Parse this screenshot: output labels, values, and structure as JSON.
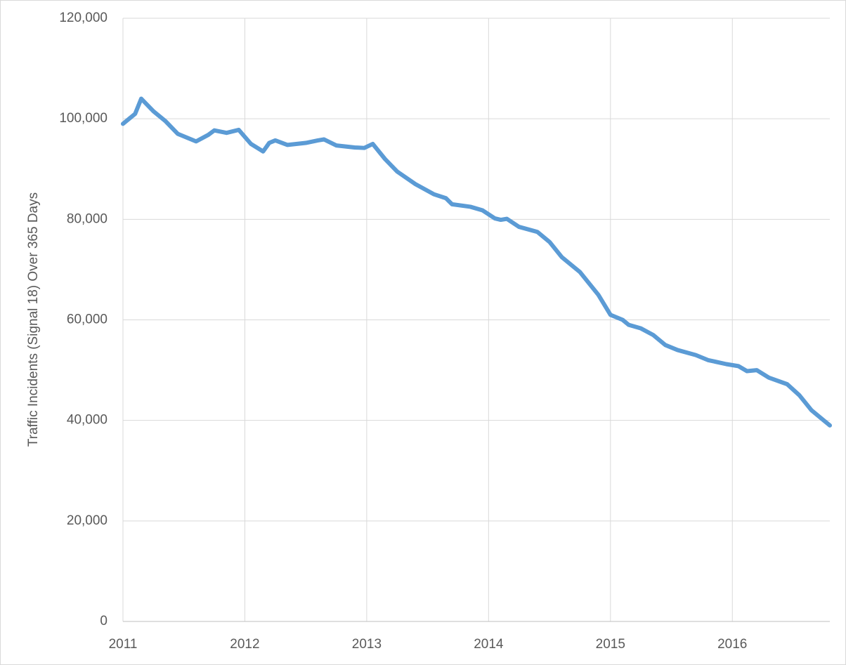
{
  "chart_data": {
    "type": "line",
    "y_label": "Traffic Incidents (Signal 18) Over 365 Days",
    "x": [
      2011.0,
      2011.1,
      2011.15,
      2011.25,
      2011.35,
      2011.45,
      2011.6,
      2011.7,
      2011.75,
      2011.85,
      2011.95,
      2012.05,
      2012.15,
      2012.2,
      2012.25,
      2012.35,
      2012.5,
      2012.6,
      2012.65,
      2012.75,
      2012.9,
      2012.98,
      2013.05,
      2013.15,
      2013.25,
      2013.4,
      2013.55,
      2013.65,
      2013.7,
      2013.85,
      2013.95,
      2014.05,
      2014.1,
      2014.15,
      2014.25,
      2014.4,
      2014.5,
      2014.6,
      2014.75,
      2014.9,
      2015.0,
      2015.1,
      2015.15,
      2015.25,
      2015.35,
      2015.45,
      2015.55,
      2015.7,
      2015.8,
      2015.95,
      2016.05,
      2016.12,
      2016.2,
      2016.3,
      2016.45,
      2016.55,
      2016.65,
      2016.75,
      2016.8
    ],
    "series": [
      {
        "color": "#5b9bd5",
        "values": [
          99000,
          101000,
          104000,
          101500,
          99500,
          97000,
          95500,
          96800,
          97700,
          97200,
          97800,
          95000,
          93500,
          95200,
          95700,
          94800,
          95200,
          95700,
          95900,
          94700,
          94300,
          94200,
          95000,
          92000,
          89500,
          87000,
          85000,
          84200,
          83000,
          82500,
          81800,
          80200,
          79900,
          80100,
          78500,
          77500,
          75500,
          72500,
          69500,
          65000,
          61000,
          60000,
          59000,
          58300,
          57000,
          55000,
          54000,
          53000,
          52000,
          51200,
          50800,
          49800,
          50000,
          48500,
          47200,
          45000,
          42000,
          40000,
          39000
        ]
      }
    ],
    "xlim": [
      2011,
      2016.8
    ],
    "xticks": [
      2011,
      2012,
      2013,
      2014,
      2015,
      2016
    ],
    "ylim": [
      0,
      120000
    ],
    "yticks": [
      0,
      {
        "value": 20000,
        "label": "20,000"
      },
      {
        "value": 40000,
        "label": "40,000"
      },
      {
        "value": 60000,
        "label": "60,000"
      },
      {
        "value": 80000,
        "label": "80,000"
      },
      {
        "value": 100000,
        "label": "100,000"
      },
      {
        "value": 120000,
        "label": "120,000"
      }
    ],
    "grid": true
  }
}
